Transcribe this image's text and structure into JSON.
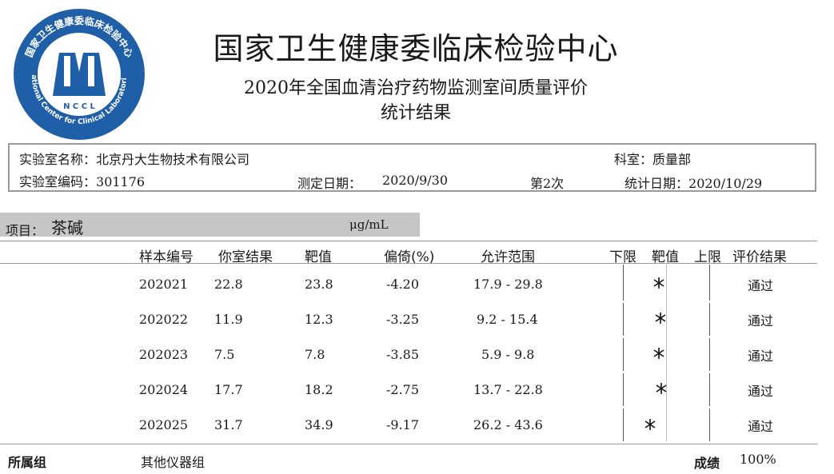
{
  "header": {
    "logo_text_top": "国家卫生健康委临床检验中心",
    "logo_abbr": "N C C L",
    "logo_text_bottom": "National Center for Clinical Laboratories",
    "title": "国家卫生健康委临床检验中心",
    "subtitle": "2020年全国血清治疗药物监测室间质量评价",
    "subtitle2": "统计结果"
  },
  "info": {
    "lab_name_label": "实验室名称：",
    "lab_name": "北京丹大生物技术有限公司",
    "dept_label": "科室：",
    "dept": "质量部",
    "lab_code_label": "实验室编码：",
    "lab_code": "301176",
    "test_date_label": "测定日期：",
    "test_date": "2020/9/30",
    "round": "第2次",
    "stat_date_label": "统计日期：",
    "stat_date": "2020/10/29"
  },
  "project": {
    "label": "项目：",
    "name": "茶碱",
    "unit": "μg/mL"
  },
  "table": {
    "headers": {
      "sample": "样本编号",
      "your_result": "你室结果",
      "target": "靶值",
      "bias": "偏倚(%)",
      "range": "允许范围",
      "lower": "下限",
      "target_mark": "靶值",
      "upper": "上限",
      "evaluation": "评价结果"
    },
    "rows": [
      {
        "sample": "202021",
        "result": "22.8",
        "target": "23.8",
        "bias": "-4.20",
        "range": "17.9 - 29.8",
        "position": -0.168,
        "evaluation": "通过"
      },
      {
        "sample": "202022",
        "result": "11.9",
        "target": "12.3",
        "bias": "-3.25",
        "range": "9.2 - 15.4",
        "position": -0.129,
        "evaluation": "通过"
      },
      {
        "sample": "202023",
        "result": "7.5",
        "target": "7.8",
        "bias": "-3.85",
        "range": "5.9 - 9.8",
        "position": -0.158,
        "evaluation": "通过"
      },
      {
        "sample": "202024",
        "result": "17.7",
        "target": "18.2",
        "bias": "-2.75",
        "range": "13.7 - 22.8",
        "position": -0.11,
        "evaluation": "通过"
      },
      {
        "sample": "202025",
        "result": "31.7",
        "target": "34.9",
        "bias": "-9.17",
        "range": "26.2 - 43.6",
        "position": -0.368,
        "evaluation": "通过"
      }
    ]
  },
  "footer": {
    "group_label": "所属组",
    "group": "其他仪器组",
    "score_label": "成绩",
    "score": "100%"
  }
}
